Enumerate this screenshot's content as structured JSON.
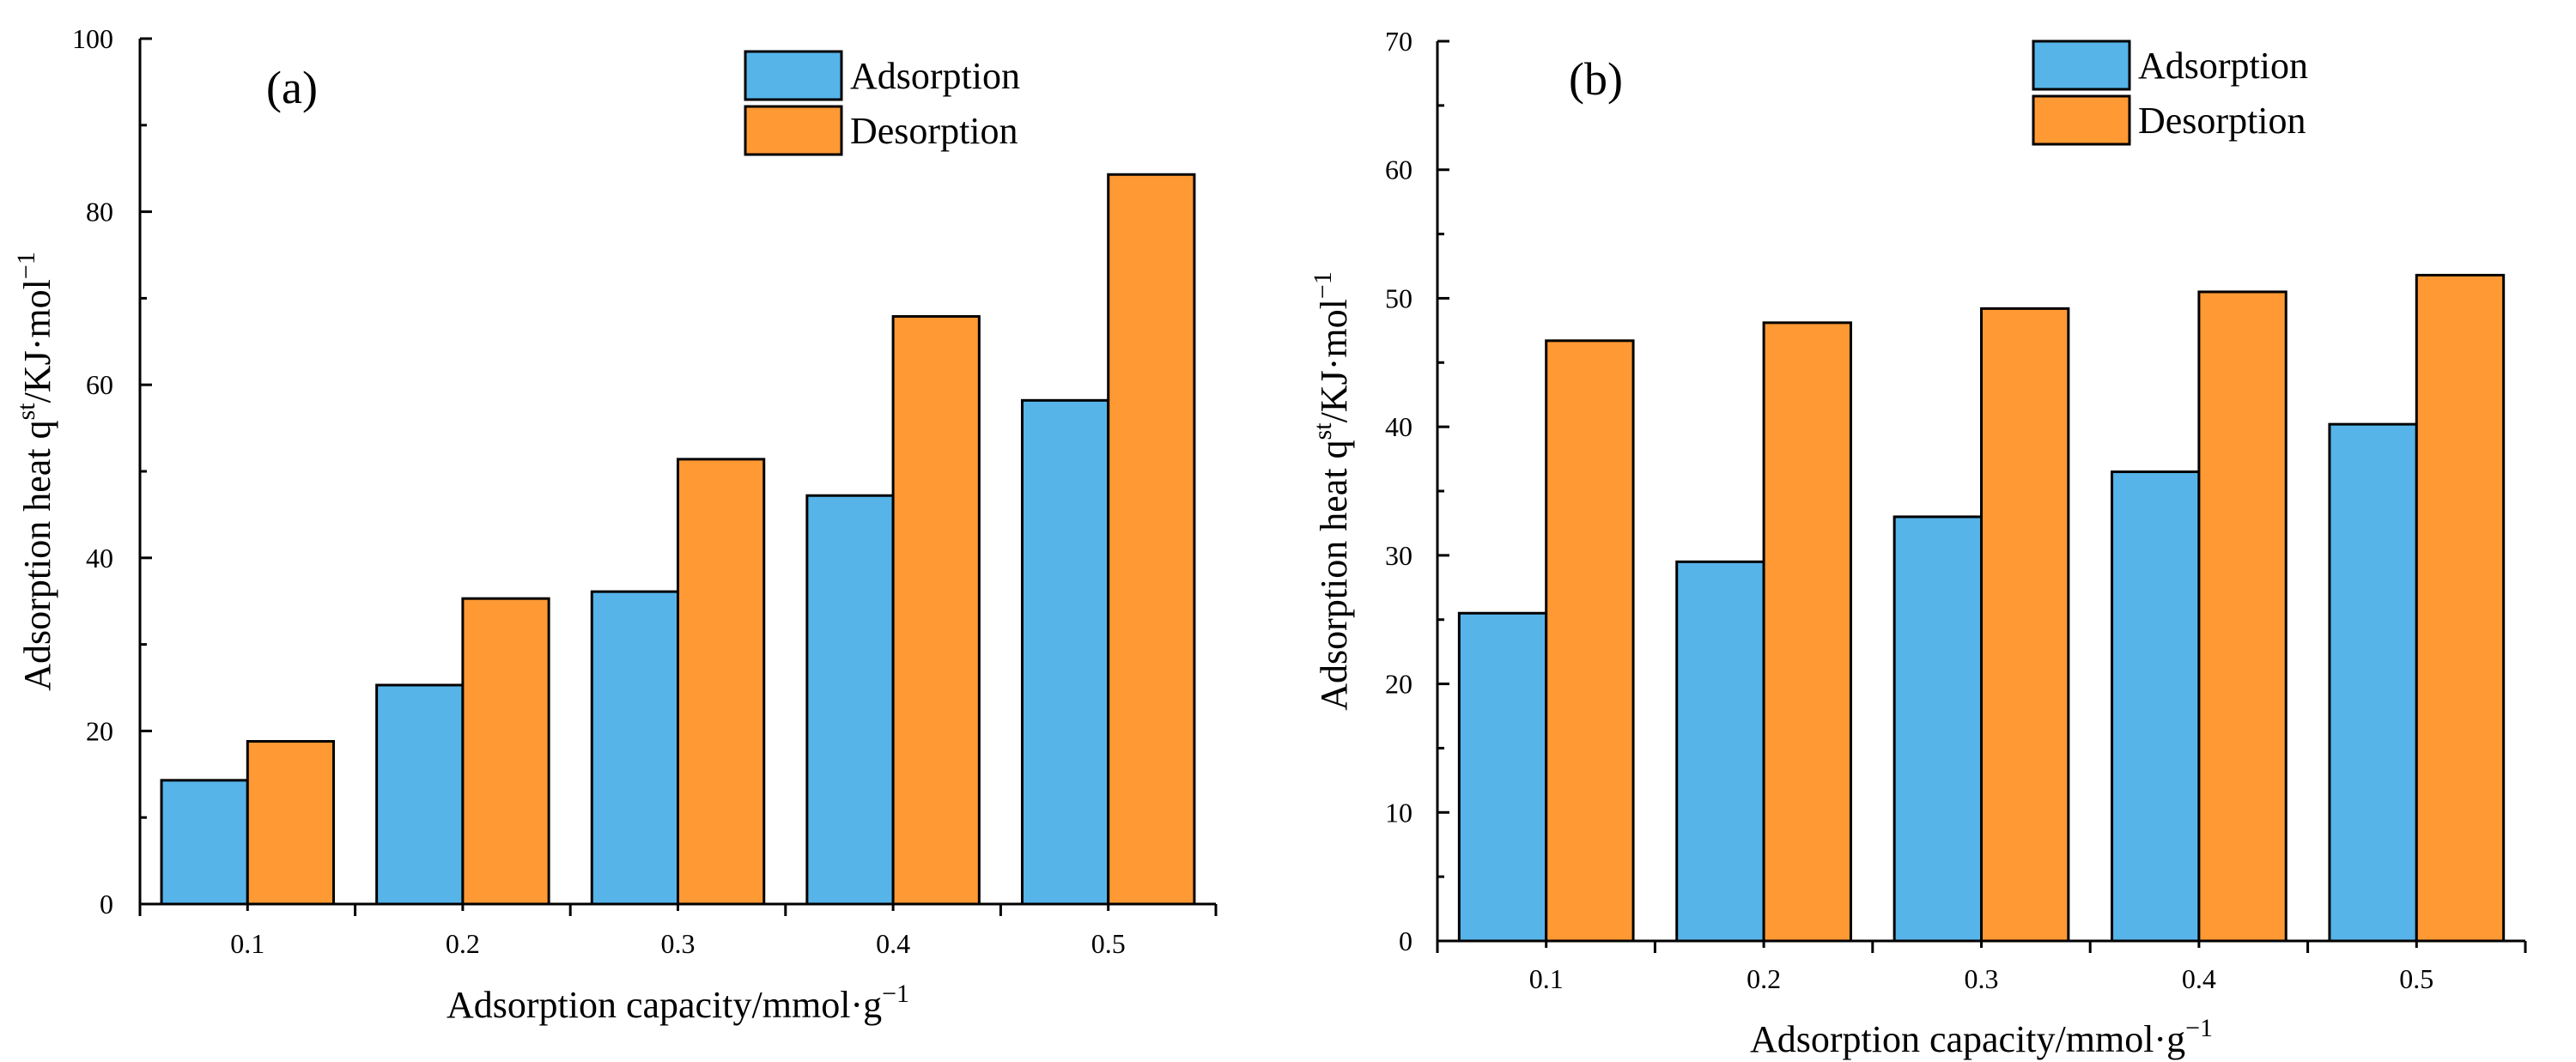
{
  "colors": {
    "adsorption": "#56B4E9",
    "desorption": "#FF9933"
  },
  "chart_data": [
    {
      "type": "bar",
      "panel_label": "(a)",
      "categories": [
        "0.1",
        "0.2",
        "0.3",
        "0.4",
        "0.5"
      ],
      "series": [
        {
          "name": "Adsorption",
          "values": [
            14.3,
            25.3,
            36.1,
            47.2,
            58.2
          ]
        },
        {
          "name": "Desorption",
          "values": [
            18.8,
            35.3,
            51.4,
            67.9,
            84.3
          ]
        }
      ],
      "ylim": [
        0,
        100
      ],
      "yticks": [
        0,
        20,
        40,
        60,
        80,
        100
      ],
      "xlabel": {
        "text": "Adsorption capacity/mmol·g",
        "sup": "−1"
      },
      "ylabel": {
        "text": "Adsorption heat q",
        "sup1": "st",
        "mid": "/KJ·mol",
        "sup2": "−1"
      },
      "legend": [
        "Adsorption",
        "Desorption"
      ],
      "legend_position": "top-right"
    },
    {
      "type": "bar",
      "panel_label": "(b)",
      "categories": [
        "0.1",
        "0.2",
        "0.3",
        "0.4",
        "0.5"
      ],
      "series": [
        {
          "name": "Adsorption",
          "values": [
            25.5,
            29.5,
            33.0,
            36.5,
            40.2
          ]
        },
        {
          "name": "Desorption",
          "values": [
            46.7,
            48.1,
            49.2,
            50.5,
            51.8
          ]
        }
      ],
      "ylim": [
        0,
        70
      ],
      "yticks": [
        0,
        10,
        20,
        30,
        40,
        50,
        60,
        70
      ],
      "xlabel": {
        "text": "Adsorption capacity/mmol·g",
        "sup": "−1"
      },
      "ylabel": {
        "text": "Adsorption heat q",
        "sup1": "st",
        "mid": "/KJ·mol",
        "sup2": "−1"
      },
      "legend": [
        "Adsorption",
        "Desorption"
      ],
      "legend_position": "top-right"
    }
  ]
}
